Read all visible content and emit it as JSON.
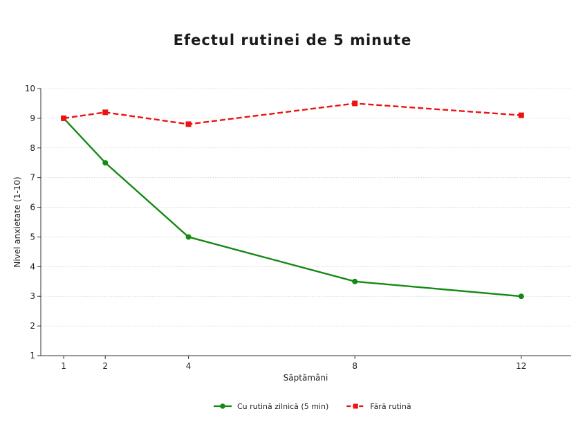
{
  "chart_data": {
    "type": "line",
    "title": "Efectul rutinei de 5 minute",
    "xlabel": "Săptămâni",
    "ylabel": "Nivel anxietate (1-10)",
    "x": [
      1,
      2,
      4,
      8,
      12
    ],
    "x_ticks": [
      1,
      2,
      4,
      8,
      12
    ],
    "xlim": [
      0.45,
      13.2
    ],
    "ylim": [
      1,
      10
    ],
    "y_ticks": [
      1,
      2,
      3,
      4,
      5,
      6,
      7,
      8,
      9,
      10
    ],
    "grid": "horizontal dotted",
    "legend_position": "bottom-center",
    "series": [
      {
        "name": "Cu rutină zilnică (5 min)",
        "values": [
          9,
          7.5,
          5,
          3.5,
          3
        ],
        "color": "#138a13",
        "marker": "circle",
        "line_style": "solid"
      },
      {
        "name": "Fără rutină",
        "values": [
          9,
          9.2,
          8.8,
          9.5,
          9.1
        ],
        "color": "#ee1111",
        "marker": "square",
        "line_style": "dashed"
      }
    ]
  }
}
